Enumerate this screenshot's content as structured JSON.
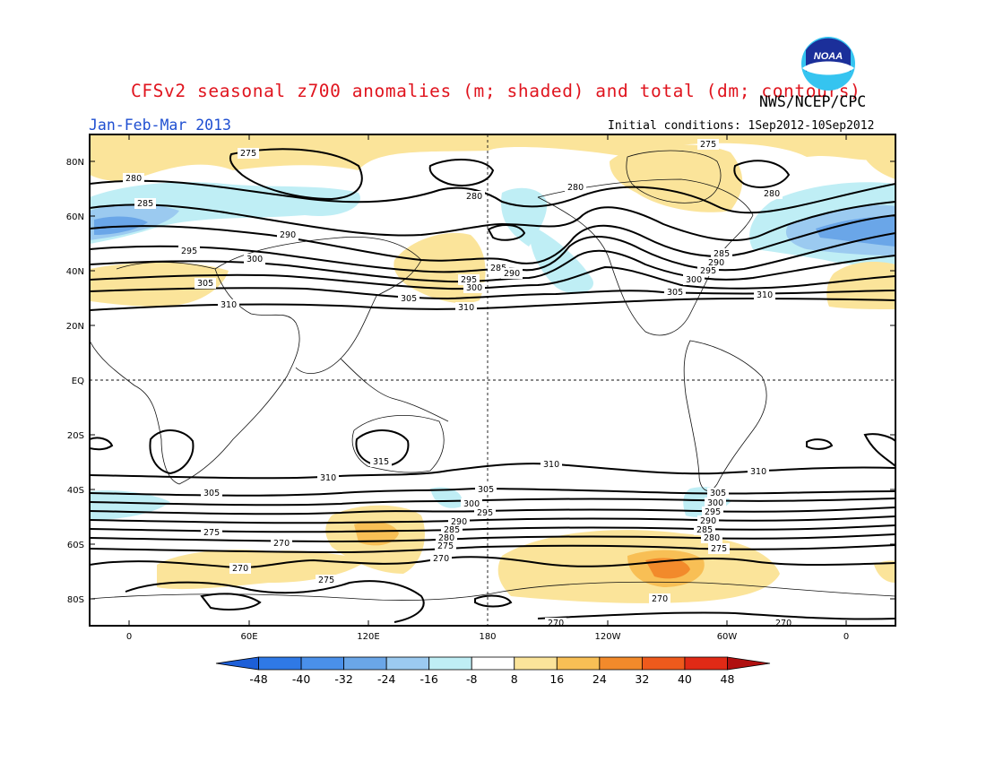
{
  "title": "CFSv2 seasonal z700 anomalies (m; shaded) and total (dm; contours)",
  "agency": "NWS/NCEP/CPC",
  "period": "Jan-Feb-Mar 2013",
  "initial_conditions": "Initial conditions: 1Sep2012-10Sep2012",
  "logo_text": "NOAA",
  "colors": {
    "title": "#e0141e",
    "period": "#1f4fd1",
    "neg_light": "#bfeef5",
    "neg_mid": "#9bcaf0",
    "neg_strong": "#6aa6e8",
    "pos_light": "#fbe49a",
    "pos_mid": "#f8bf55",
    "pos_strong": "#f28a2b"
  },
  "map": {
    "lat_labels": [
      "80N",
      "60N",
      "40N",
      "20N",
      "EQ",
      "20S",
      "40S",
      "60S",
      "80S"
    ],
    "lon_labels": [
      "0",
      "60E",
      "120E",
      "180",
      "120W",
      "60W",
      "0"
    ],
    "contour_labels": [
      "275",
      "280",
      "285",
      "290",
      "295",
      "300",
      "305",
      "310",
      "315",
      "270"
    ]
  },
  "colorbar": {
    "labels": [
      "-48",
      "-40",
      "-32",
      "-24",
      "-16",
      "-8",
      "8",
      "16",
      "24",
      "32",
      "40",
      "48"
    ],
    "colors": [
      "#1d5fd8",
      "#2f79e6",
      "#4a90ea",
      "#6aa6e8",
      "#9bcaf0",
      "#bfeef5",
      "#ffffff",
      "#fbe49a",
      "#f8bf55",
      "#f28a2b",
      "#ee5a1c",
      "#e02a16",
      "#b01010"
    ]
  }
}
